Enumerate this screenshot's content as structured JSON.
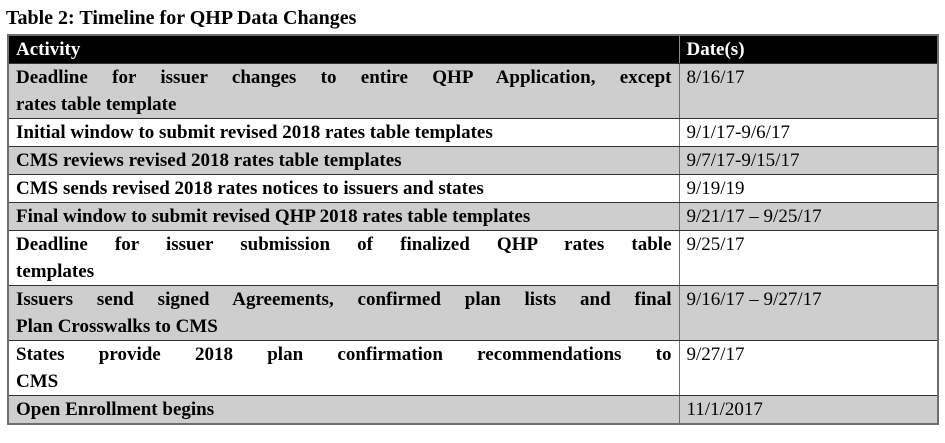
{
  "title": "Table 2: Timeline for QHP Data Changes",
  "table": {
    "headers": [
      "Activity",
      "Date(s)"
    ],
    "rows": [
      {
        "activity": "Deadline for issuer changes to entire QHP Application, except\nrates table template",
        "date": "8/16/17"
      },
      {
        "activity": "Initial window to submit revised 2018 rates table templates",
        "date": "9/1/17-9/6/17"
      },
      {
        "activity": "CMS reviews revised 2018 rates table templates",
        "date": "9/7/17-9/15/17"
      },
      {
        "activity": "CMS sends revised 2018 rates notices to issuers and states",
        "date": "9/19/19"
      },
      {
        "activity": "Final window to submit revised QHP 2018 rates table templates",
        "date": "9/21/17 – 9/25/17"
      },
      {
        "activity": "Deadline for issuer submission of finalized QHP rates table\ntemplates",
        "date": "9/25/17"
      },
      {
        "activity": "Issuers send signed Agreements, confirmed plan lists and final\nPlan Crosswalks to CMS",
        "date": "9/16/17 – 9/27/17"
      },
      {
        "activity": "States provide 2018 plan confirmation recommendations to\nCMS",
        "date": "9/27/17"
      },
      {
        "activity": "Open Enrollment begins",
        "date": "11/1/2017"
      }
    ]
  },
  "colors": {
    "header_bg": "#000000",
    "header_text": "#ffffff",
    "shaded_row_bg": "#cecece",
    "plain_row_bg": "#ffffff",
    "outer_border": "#6e6e6e",
    "row_divider": "#323232",
    "text": "#000000"
  }
}
